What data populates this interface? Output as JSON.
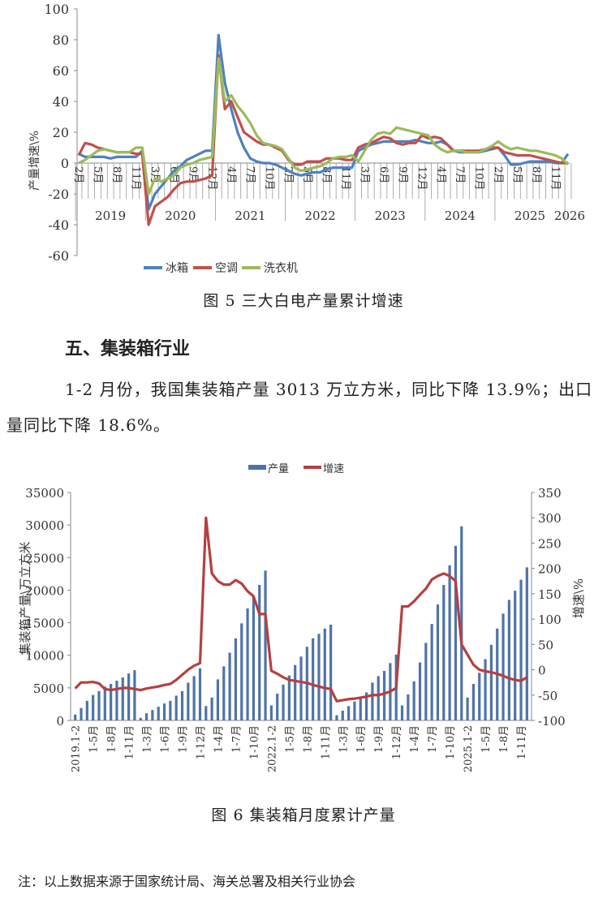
{
  "chart_data": [
    {
      "type": "line",
      "title": "图 5 三大白电产量累计增速",
      "ylabel": "产量增速\\%",
      "ylim": [
        -60,
        100
      ],
      "yticks": [
        -60,
        -40,
        -20,
        0,
        20,
        40,
        60,
        80,
        100
      ],
      "years": [
        "2019",
        "2020",
        "2021",
        "2022",
        "2023",
        "2024",
        "2025",
        "2026"
      ],
      "x_tick_labels": [
        "2月",
        "5月",
        "8月",
        "11月",
        "3月",
        "6月",
        "9月",
        "12月",
        "4月",
        "7月",
        "10月",
        "2月",
        "5月",
        "8月",
        "11月",
        "3月",
        "6月",
        "9月",
        "12月",
        "4月",
        "7月",
        "10月",
        "2月",
        "5月",
        "8月",
        "11月"
      ],
      "legend": "bottom",
      "grid": false,
      "series": [
        {
          "name": "冰箱",
          "color": "#4f81bd",
          "values": [
            6,
            4,
            4,
            4,
            4,
            3,
            4,
            4,
            4,
            4,
            8,
            -30,
            -20,
            -15,
            -10,
            -5,
            -2,
            2,
            4,
            6,
            8,
            8,
            83,
            52,
            35,
            20,
            10,
            3,
            1,
            0,
            0,
            -1,
            -3,
            -5,
            -7,
            -8,
            -7,
            -6,
            -6,
            -4,
            -3,
            -3,
            -3,
            -3,
            8,
            10,
            12,
            13,
            14,
            14,
            14,
            14,
            14,
            15,
            14,
            13,
            13,
            14,
            12,
            8,
            7,
            7,
            7,
            7,
            8,
            9,
            10,
            5,
            -1,
            -1,
            0,
            1,
            1,
            1,
            1,
            0,
            0,
            6
          ]
        },
        {
          "name": "空调",
          "color": "#c0504d",
          "values": [
            5,
            13,
            12,
            10,
            9,
            8,
            7,
            7,
            7,
            6,
            6,
            -40,
            -28,
            -25,
            -22,
            -17,
            -13,
            -12,
            -12,
            -11,
            -10,
            -8,
            70,
            35,
            40,
            30,
            20,
            17,
            14,
            12,
            12,
            10,
            8,
            2,
            -1,
            -1,
            1,
            1,
            1,
            3,
            3,
            3,
            2,
            2,
            10,
            12,
            13,
            15,
            17,
            16,
            13,
            12,
            13,
            13,
            18,
            16,
            17,
            16,
            12,
            8,
            8,
            8,
            8,
            8,
            9,
            10,
            10,
            7,
            6,
            5,
            5,
            5,
            4,
            3,
            2,
            1,
            0,
            0
          ]
        },
        {
          "name": "洗衣机",
          "color": "#9bbb59",
          "values": [
            0,
            2,
            5,
            8,
            9,
            8,
            7,
            7,
            7,
            10,
            10,
            -20,
            -10,
            -12,
            -10,
            -8,
            -3,
            -1,
            0,
            2,
            3,
            4,
            68,
            40,
            44,
            37,
            32,
            26,
            18,
            13,
            12,
            11,
            9,
            3,
            -3,
            -5,
            -4,
            -3,
            -2,
            0,
            3,
            4,
            4,
            5,
            1,
            8,
            15,
            19,
            20,
            19,
            23,
            22,
            21,
            20,
            19,
            18,
            12,
            9,
            7,
            8,
            8,
            7,
            7,
            7,
            9,
            11,
            14,
            11,
            9,
            10,
            9,
            8,
            8,
            7,
            6,
            5,
            3,
            -1
          ]
        }
      ]
    },
    {
      "type": "bar+line",
      "title": "图 6 集装箱月度累计产量",
      "ylabel": "集装箱产量\\万立方米",
      "y2label": "增速\\%",
      "ylim": [
        0,
        35000
      ],
      "y2lim": [
        -100,
        350
      ],
      "yticks": [
        0,
        5000,
        10000,
        15000,
        20000,
        25000,
        30000,
        35000
      ],
      "y2ticks": [
        -100,
        -50,
        0,
        50,
        100,
        150,
        200,
        250,
        300,
        350
      ],
      "x_tick_labels": [
        "2019.1-2",
        "1-5月",
        "1-8月",
        "1-11月",
        "1-3月",
        "1-6月",
        "1-9月",
        "1-12月",
        "1-4月",
        "1-7月",
        "1-10月",
        "2022.1-2",
        "1-5月",
        "1-8月",
        "1-11月",
        "1-3月",
        "1-6月",
        "1-9月",
        "1-12月",
        "1-4月",
        "1-7月",
        "1-10月",
        "2025.1-2",
        "1-5月",
        "1-8月",
        "1-11月"
      ],
      "legend": "top",
      "grid": false,
      "series": [
        {
          "name": "产量",
          "type": "bar",
          "axis": "left",
          "color": "#4f73a8",
          "values": [
            900,
            1900,
            3000,
            3900,
            4500,
            5200,
            5600,
            6100,
            6600,
            7200,
            7700,
            400,
            1100,
            1600,
            2100,
            2600,
            3000,
            3800,
            4500,
            5800,
            6800,
            8000,
            2200,
            3500,
            6300,
            8300,
            10400,
            12600,
            14900,
            17200,
            19000,
            20800,
            23000,
            2300,
            4100,
            5500,
            6900,
            8500,
            9800,
            11300,
            12600,
            13300,
            14100,
            14700,
            800,
            1500,
            2200,
            2900,
            3500,
            4300,
            5800,
            6800,
            7600,
            8800,
            10100,
            2300,
            4000,
            6000,
            8900,
            11900,
            14800,
            17800,
            20800,
            23800,
            26800,
            29800,
            3500,
            5600,
            7300,
            9400,
            11600,
            14100,
            16400,
            18500,
            19900,
            21600,
            23500
          ]
        },
        {
          "name": "增速",
          "type": "line",
          "axis": "right",
          "color": "#b5403f",
          "values": [
            -37,
            -25,
            -25,
            -24,
            -27,
            -38,
            -40,
            -38,
            -36,
            -36,
            -38,
            -40,
            -37,
            -35,
            -33,
            -30,
            -28,
            -20,
            -10,
            0,
            8,
            13,
            300,
            190,
            175,
            168,
            168,
            177,
            170,
            155,
            145,
            110,
            110,
            -2,
            -8,
            -15,
            -20,
            -22,
            -24,
            -26,
            -30,
            -33,
            -36,
            -38,
            -62,
            -60,
            -58,
            -57,
            -55,
            -53,
            -50,
            -50,
            -47,
            -43,
            -36,
            125,
            125,
            135,
            148,
            160,
            178,
            185,
            190,
            185,
            175,
            50,
            30,
            10,
            0,
            -3,
            -5,
            -8,
            -12,
            -17,
            -20,
            -22,
            -15
          ]
        }
      ]
    }
  ],
  "section": {
    "heading": "五、集装箱行业",
    "paragraph": "1-2 月份，我国集装箱产量 3013 万立方米，同比下降 13.9%；出口量同比下降 18.6%。"
  },
  "note": "注：以上数据来源于国家统计局、海关总署及相关行业协会"
}
